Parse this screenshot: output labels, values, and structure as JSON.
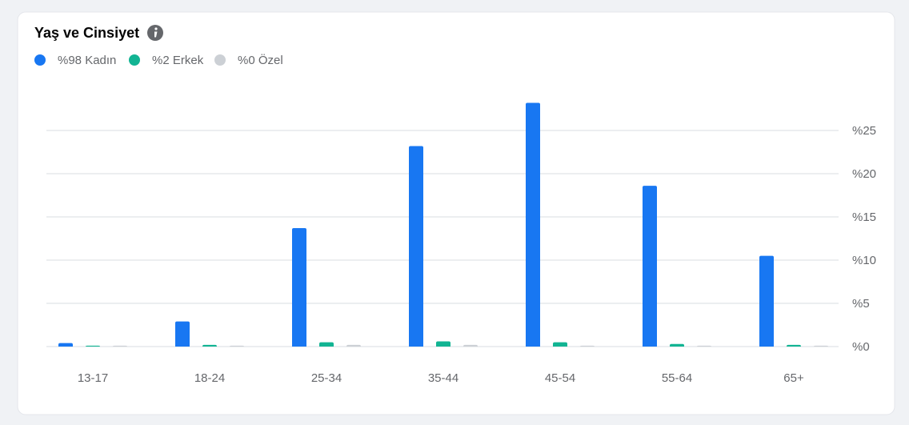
{
  "chart_data": {
    "type": "bar",
    "title": "Yaş ve Cinsiyet",
    "categories": [
      "13-17",
      "18-24",
      "25-34",
      "35-44",
      "45-54",
      "55-64",
      "65+"
    ],
    "series": [
      {
        "name": "%98 Kadın",
        "color": "#1877f2",
        "values": [
          0.4,
          2.9,
          13.7,
          23.2,
          28.2,
          18.6,
          10.5
        ]
      },
      {
        "name": "%2 Erkek",
        "color": "#12b493",
        "values": [
          0.1,
          0.2,
          0.5,
          0.6,
          0.5,
          0.3,
          0.2
        ]
      },
      {
        "name": "%0 Özel",
        "color": "#ccd0d5",
        "values": [
          0.1,
          0.1,
          0.2,
          0.2,
          0.1,
          0.1,
          0.1
        ]
      }
    ],
    "ylim": [
      0,
      30
    ],
    "yticks": [
      {
        "value": 0,
        "label": "%0"
      },
      {
        "value": 5,
        "label": "%5"
      },
      {
        "value": 10,
        "label": "%10"
      },
      {
        "value": 15,
        "label": "%15"
      },
      {
        "value": 20,
        "label": "%20"
      },
      {
        "value": 25,
        "label": "%25"
      }
    ],
    "grid": true
  }
}
